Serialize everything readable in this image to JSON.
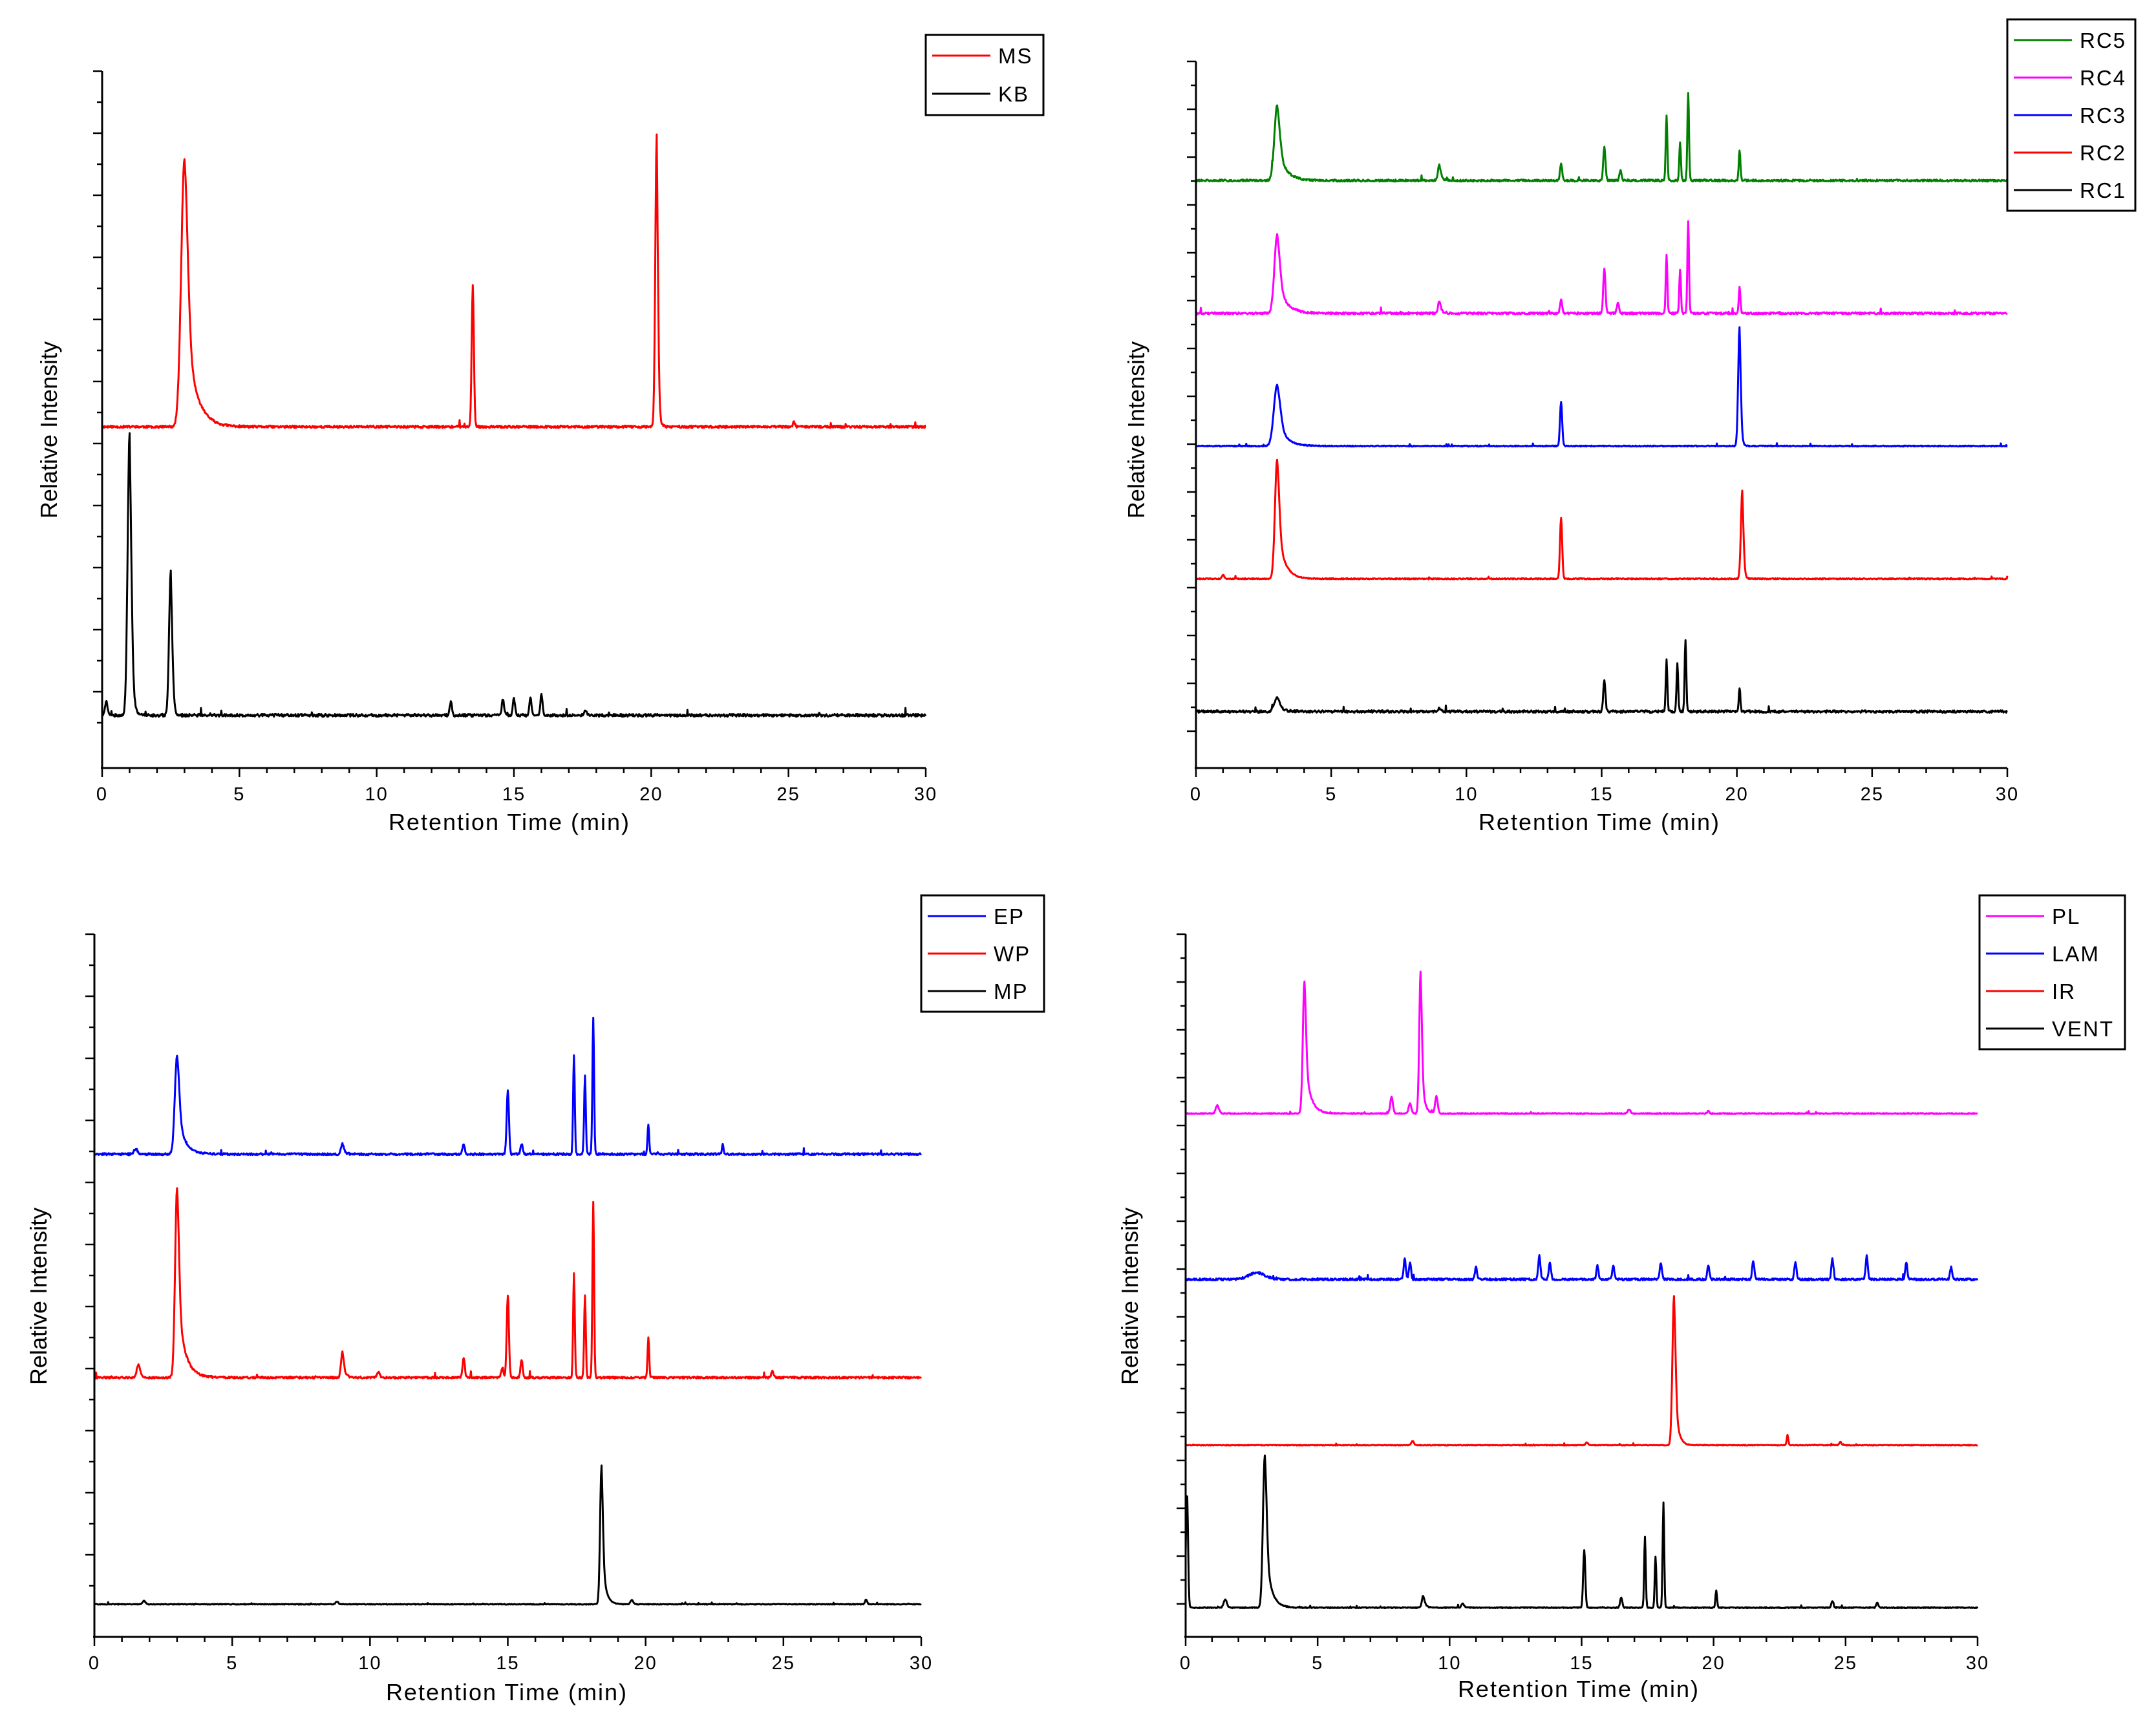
{
  "chart_data": [
    {
      "type": "line",
      "xlabel": "Retention Time (min)",
      "ylabel": "Relative Intensity",
      "xlim": [
        0,
        30
      ],
      "x_ticks": [
        "0",
        "5",
        "10",
        "15",
        "20",
        "25",
        "30"
      ],
      "ylim": [
        0,
        100
      ],
      "y_tick_labels": "none",
      "legend_position": "top-right",
      "series": [
        {
          "name": "MS",
          "color": "#ff0000",
          "baseline": 47,
          "noise": 0.35,
          "seed": 11,
          "peaks": [
            {
              "t": 3.0,
              "h": 40,
              "w": 0.12,
              "tail": 0.35
            },
            {
              "t": 13.5,
              "h": 21,
              "w": 0.04
            },
            {
              "t": 20.2,
              "h": 43.5,
              "w": 0.05,
              "tail": 0.05
            },
            {
              "t": 25.2,
              "h": 0.7,
              "w": 0.04
            }
          ]
        },
        {
          "name": "KB",
          "color": "#000000",
          "baseline": 4,
          "noise": 0.4,
          "seed": 21,
          "peaks": [
            {
              "t": 0.15,
              "h": 2,
              "w": 0.05
            },
            {
              "t": 1.0,
              "h": 42,
              "w": 0.07,
              "tail": 0.08
            },
            {
              "t": 2.5,
              "h": 21.5,
              "w": 0.06,
              "tail": 0.06
            },
            {
              "t": 12.7,
              "h": 2,
              "w": 0.04
            },
            {
              "t": 14.6,
              "h": 2.5,
              "w": 0.04
            },
            {
              "t": 15.0,
              "h": 2.5,
              "w": 0.04
            },
            {
              "t": 15.6,
              "h": 2.5,
              "w": 0.04
            },
            {
              "t": 16.0,
              "h": 3,
              "w": 0.04
            },
            {
              "t": 17.6,
              "h": 0.9,
              "w": 0.04
            }
          ]
        }
      ]
    },
    {
      "type": "line",
      "xlabel": "Retention Time (min)",
      "ylabel": "Relative Intensity",
      "xlim": [
        0,
        30
      ],
      "x_ticks": [
        "0",
        "5",
        "10",
        "15",
        "20",
        "25",
        "30"
      ],
      "ylim": [
        0,
        100
      ],
      "y_tick_labels": "none",
      "legend_position": "top-right",
      "series": [
        {
          "name": "RC5",
          "color": "#008000",
          "baseline": 82.5,
          "noise": 0.3,
          "seed": 31,
          "peaks": [
            {
              "t": 3.0,
              "h": 11,
              "w": 0.1,
              "tail": 0.3
            },
            {
              "t": 9.0,
              "h": 2.3,
              "w": 0.05,
              "tail": 0.1
            },
            {
              "t": 13.5,
              "h": 2.5,
              "w": 0.04
            },
            {
              "t": 15.1,
              "h": 5,
              "w": 0.04
            },
            {
              "t": 15.7,
              "h": 1.5,
              "w": 0.04
            },
            {
              "t": 17.4,
              "h": 9.5,
              "w": 0.03
            },
            {
              "t": 17.9,
              "h": 5.5,
              "w": 0.03
            },
            {
              "t": 18.2,
              "h": 13,
              "w": 0.03
            },
            {
              "t": 20.1,
              "h": 4.5,
              "w": 0.03
            }
          ]
        },
        {
          "name": "RC4",
          "color": "#ff00ff",
          "baseline": 63,
          "noise": 0.3,
          "seed": 41,
          "peaks": [
            {
              "t": 3.0,
              "h": 11.5,
              "w": 0.1,
              "tail": 0.3
            },
            {
              "t": 9.0,
              "h": 1.8,
              "w": 0.05,
              "tail": 0.1
            },
            {
              "t": 13.5,
              "h": 2.0,
              "w": 0.04
            },
            {
              "t": 15.1,
              "h": 6.5,
              "w": 0.04
            },
            {
              "t": 15.6,
              "h": 1.5,
              "w": 0.04
            },
            {
              "t": 17.4,
              "h": 8.5,
              "w": 0.03
            },
            {
              "t": 17.9,
              "h": 6.5,
              "w": 0.03
            },
            {
              "t": 18.2,
              "h": 13.5,
              "w": 0.03
            },
            {
              "t": 20.1,
              "h": 4,
              "w": 0.03
            }
          ]
        },
        {
          "name": "RC3",
          "color": "#0000ff",
          "baseline": 43.5,
          "noise": 0.15,
          "seed": 51,
          "peaks": [
            {
              "t": 3.0,
              "h": 9,
              "w": 0.12,
              "tail": 0.3
            },
            {
              "t": 13.5,
              "h": 6.5,
              "w": 0.04
            },
            {
              "t": 20.1,
              "h": 17.5,
              "w": 0.05,
              "tail": 0.05
            }
          ]
        },
        {
          "name": "RC2",
          "color": "#ff0000",
          "baseline": 24,
          "noise": 0.15,
          "seed": 61,
          "peaks": [
            {
              "t": 1.0,
              "h": 0.6,
              "w": 0.04
            },
            {
              "t": 3.0,
              "h": 17.5,
              "w": 0.08,
              "tail": 0.25
            },
            {
              "t": 13.5,
              "h": 9,
              "w": 0.04
            },
            {
              "t": 20.2,
              "h": 13,
              "w": 0.05,
              "tail": 0.05
            }
          ]
        },
        {
          "name": "RC1",
          "color": "#000000",
          "baseline": 4.5,
          "noise": 0.35,
          "seed": 71,
          "peaks": [
            {
              "t": 3.0,
              "h": 2,
              "w": 0.1,
              "tail": 0.2
            },
            {
              "t": 9.0,
              "h": 0.5,
              "w": 0.05
            },
            {
              "t": 15.1,
              "h": 4.5,
              "w": 0.04
            },
            {
              "t": 17.4,
              "h": 7.5,
              "w": 0.03
            },
            {
              "t": 17.8,
              "h": 7,
              "w": 0.03
            },
            {
              "t": 18.1,
              "h": 10.5,
              "w": 0.03
            },
            {
              "t": 20.1,
              "h": 3.5,
              "w": 0.03
            }
          ]
        }
      ]
    },
    {
      "type": "line",
      "xlabel": "Retention Time (min)",
      "ylabel": "Relative Intensity",
      "xlim": [
        0,
        30
      ],
      "x_ticks": [
        "0",
        "5",
        "10",
        "15",
        "20",
        "25",
        "30"
      ],
      "ylim": [
        0,
        100
      ],
      "y_tick_labels": "none",
      "legend_position": "top-right",
      "series": [
        {
          "name": "EP",
          "color": "#0000ff",
          "baseline": 67.5,
          "noise": 0.3,
          "seed": 81,
          "peaks": [
            {
              "t": 1.5,
              "h": 0.8,
              "w": 0.06
            },
            {
              "t": 3.0,
              "h": 14.5,
              "w": 0.08,
              "tail": 0.25
            },
            {
              "t": 9.0,
              "h": 1.6,
              "w": 0.05,
              "tail": 0.1
            },
            {
              "t": 13.4,
              "h": 1.5,
              "w": 0.04
            },
            {
              "t": 15.0,
              "h": 9.5,
              "w": 0.04
            },
            {
              "t": 15.5,
              "h": 1.5,
              "w": 0.04
            },
            {
              "t": 17.4,
              "h": 14.5,
              "w": 0.03
            },
            {
              "t": 17.8,
              "h": 11.5,
              "w": 0.03
            },
            {
              "t": 18.1,
              "h": 20,
              "w": 0.03
            },
            {
              "t": 20.1,
              "h": 4.5,
              "w": 0.03
            },
            {
              "t": 22.8,
              "h": 1.5,
              "w": 0.03
            }
          ]
        },
        {
          "name": "WP",
          "color": "#ff0000",
          "baseline": 34.5,
          "noise": 0.3,
          "seed": 91,
          "peaks": [
            {
              "t": 1.6,
              "h": 2,
              "w": 0.06
            },
            {
              "t": 3.0,
              "h": 28,
              "w": 0.07,
              "tail": 0.25
            },
            {
              "t": 9.0,
              "h": 3.8,
              "w": 0.05,
              "tail": 0.1
            },
            {
              "t": 10.3,
              "h": 0.8,
              "w": 0.05
            },
            {
              "t": 13.4,
              "h": 3,
              "w": 0.04
            },
            {
              "t": 14.8,
              "h": 1.5,
              "w": 0.04
            },
            {
              "t": 15.0,
              "h": 12,
              "w": 0.04
            },
            {
              "t": 15.5,
              "h": 2.5,
              "w": 0.04
            },
            {
              "t": 17.4,
              "h": 15.5,
              "w": 0.03
            },
            {
              "t": 17.8,
              "h": 12,
              "w": 0.03
            },
            {
              "t": 18.1,
              "h": 26,
              "w": 0.03
            },
            {
              "t": 20.1,
              "h": 6,
              "w": 0.03
            },
            {
              "t": 24.6,
              "h": 1,
              "w": 0.04
            }
          ]
        },
        {
          "name": "MP",
          "color": "#000000",
          "baseline": 1,
          "noise": 0.1,
          "seed": 101,
          "peaks": [
            {
              "t": 1.8,
              "h": 0.5,
              "w": 0.05
            },
            {
              "t": 8.8,
              "h": 0.4,
              "w": 0.05
            },
            {
              "t": 18.4,
              "h": 20.5,
              "w": 0.05,
              "tail": 0.12
            },
            {
              "t": 19.5,
              "h": 0.6,
              "w": 0.05
            },
            {
              "t": 28.0,
              "h": 0.7,
              "w": 0.04
            }
          ]
        }
      ]
    },
    {
      "type": "line",
      "xlabel": "Retention Time (min)",
      "ylabel": "Relative Intensity",
      "xlim": [
        0,
        30
      ],
      "x_ticks": [
        "0",
        "5",
        "10",
        "15",
        "20",
        "25",
        "30"
      ],
      "ylim": [
        0,
        100
      ],
      "y_tick_labels": "none",
      "legend_position": "top-right",
      "series": [
        {
          "name": "PL",
          "color": "#ff00ff",
          "baseline": 73.5,
          "noise": 0.15,
          "seed": 111,
          "peaks": [
            {
              "t": 1.2,
              "h": 1.2,
              "w": 0.06
            },
            {
              "t": 4.5,
              "h": 19.5,
              "w": 0.06,
              "tail": 0.2
            },
            {
              "t": 7.8,
              "h": 2.5,
              "w": 0.05
            },
            {
              "t": 8.5,
              "h": 1.5,
              "w": 0.05
            },
            {
              "t": 8.9,
              "h": 21,
              "w": 0.05,
              "tail": 0.1
            },
            {
              "t": 9.5,
              "h": 2.5,
              "w": 0.05
            },
            {
              "t": 16.8,
              "h": 0.6,
              "w": 0.05
            },
            {
              "t": 19.8,
              "h": 0.4,
              "w": 0.04
            }
          ]
        },
        {
          "name": "LAM",
          "color": "#0000ff",
          "baseline": 49,
          "noise": 0.3,
          "seed": 121,
          "peaks": [
            {
              "t": 2.7,
              "h": 1,
              "w": 0.3
            },
            {
              "t": 8.3,
              "h": 3,
              "w": 0.04
            },
            {
              "t": 8.5,
              "h": 2.5,
              "w": 0.04
            },
            {
              "t": 11.0,
              "h": 1.8,
              "w": 0.04
            },
            {
              "t": 13.4,
              "h": 3.5,
              "w": 0.04
            },
            {
              "t": 13.8,
              "h": 2.5,
              "w": 0.04
            },
            {
              "t": 15.6,
              "h": 2,
              "w": 0.04
            },
            {
              "t": 16.2,
              "h": 2,
              "w": 0.04
            },
            {
              "t": 18.0,
              "h": 2.5,
              "w": 0.04
            },
            {
              "t": 19.8,
              "h": 2,
              "w": 0.04
            },
            {
              "t": 21.5,
              "h": 2.8,
              "w": 0.04
            },
            {
              "t": 23.1,
              "h": 2.5,
              "w": 0.04
            },
            {
              "t": 24.5,
              "h": 3,
              "w": 0.04
            },
            {
              "t": 25.8,
              "h": 3.5,
              "w": 0.04
            },
            {
              "t": 27.3,
              "h": 2.5,
              "w": 0.04
            },
            {
              "t": 29.0,
              "h": 1.8,
              "w": 0.04
            }
          ]
        },
        {
          "name": "IR",
          "color": "#ff0000",
          "baseline": 24.5,
          "noise": 0.1,
          "seed": 131,
          "peaks": [
            {
              "t": 8.6,
              "h": 0.6,
              "w": 0.05
            },
            {
              "t": 15.2,
              "h": 0.4,
              "w": 0.05
            },
            {
              "t": 18.5,
              "h": 22,
              "w": 0.06,
              "tail": 0.12
            },
            {
              "t": 22.8,
              "h": 1.5,
              "w": 0.03
            },
            {
              "t": 24.8,
              "h": 0.5,
              "w": 0.04
            }
          ]
        },
        {
          "name": "VENT",
          "color": "#000000",
          "baseline": 0.5,
          "noise": 0.15,
          "seed": 141,
          "peaks": [
            {
              "t": 0.05,
              "h": 17,
              "w": 0.04
            },
            {
              "t": 1.5,
              "h": 1.2,
              "w": 0.06
            },
            {
              "t": 3.0,
              "h": 22.5,
              "w": 0.07,
              "tail": 0.2
            },
            {
              "t": 9.0,
              "h": 1.8,
              "w": 0.05,
              "tail": 0.1
            },
            {
              "t": 10.5,
              "h": 0.6,
              "w": 0.05
            },
            {
              "t": 15.1,
              "h": 8.5,
              "w": 0.04
            },
            {
              "t": 16.5,
              "h": 1.5,
              "w": 0.04
            },
            {
              "t": 17.4,
              "h": 10.5,
              "w": 0.03
            },
            {
              "t": 17.8,
              "h": 7.5,
              "w": 0.03
            },
            {
              "t": 18.1,
              "h": 15.5,
              "w": 0.03
            },
            {
              "t": 20.1,
              "h": 2.5,
              "w": 0.03
            },
            {
              "t": 24.5,
              "h": 1,
              "w": 0.04
            },
            {
              "t": 26.2,
              "h": 0.7,
              "w": 0.04
            }
          ]
        }
      ]
    }
  ]
}
